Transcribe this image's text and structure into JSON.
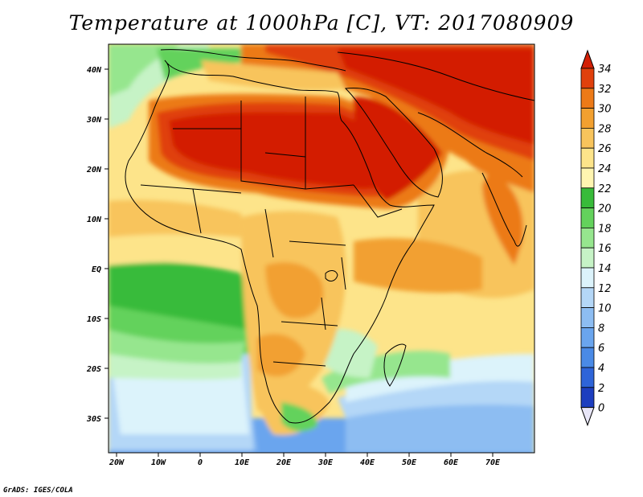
{
  "title": "Temperature at 1000hPa [C], VT: 2017080909",
  "credit": "GrADS: IGES/COLA",
  "map": {
    "lon_labels": [
      "20W",
      "10W",
      "0",
      "10E",
      "20E",
      "30E",
      "40E",
      "50E",
      "60E",
      "70E"
    ],
    "lat_labels": [
      "40N",
      "30N",
      "20N",
      "10N",
      "EQ",
      "10S",
      "20S",
      "30S"
    ],
    "region": "Africa, Middle East and Arabian Sea"
  },
  "colorbar": {
    "labels": [
      "0",
      "2",
      "4",
      "6",
      "8",
      "10",
      "12",
      "14",
      "16",
      "18",
      "20",
      "22",
      "24",
      "26",
      "28",
      "30",
      "32",
      "34"
    ],
    "colors": [
      "#0b1e8c",
      "#1d3ebf",
      "#2e64d8",
      "#4a8ae6",
      "#6aa5ee",
      "#8dbdf2",
      "#b4d7f7",
      "#dcf3fb",
      "#c6f3c6",
      "#96e68e",
      "#63d25c",
      "#38bb3a",
      "#fff5b0",
      "#fde48a",
      "#f8c45c",
      "#f2a030",
      "#ec7a18",
      "#e0400c",
      "#d31f05"
    ]
  }
}
